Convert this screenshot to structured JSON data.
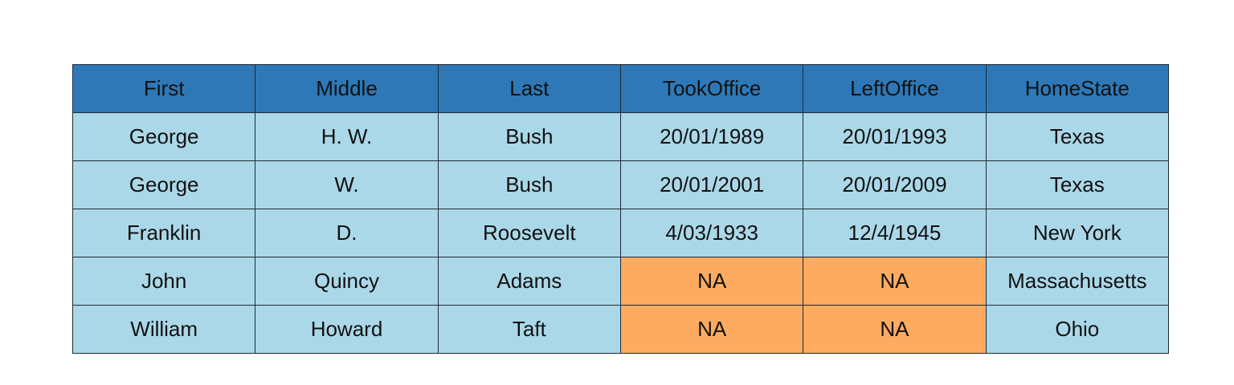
{
  "table": {
    "headers": [
      "First",
      "Middle",
      "Last",
      "TookOffice",
      "LeftOffice",
      "HomeState"
    ],
    "rows": [
      [
        "George",
        "H. W.",
        "Bush",
        "20/01/1989",
        "20/01/1993",
        "Texas"
      ],
      [
        "George",
        "W.",
        "Bush",
        "20/01/2001",
        "20/01/2009",
        "Texas"
      ],
      [
        "Franklin",
        "D.",
        "Roosevelt",
        "4/03/1933",
        "12/4/1945",
        "New York"
      ],
      [
        "John",
        "Quincy",
        "Adams",
        "NA",
        "NA",
        "Massachusetts"
      ],
      [
        "William",
        "Howard",
        "Taft",
        "NA",
        "NA",
        "Ohio"
      ]
    ]
  },
  "colors": {
    "header_bg": "#2e78b7",
    "cell_bg": "#abd8e8",
    "missing_bg": "#fdab60",
    "border": "#1f2a36"
  }
}
